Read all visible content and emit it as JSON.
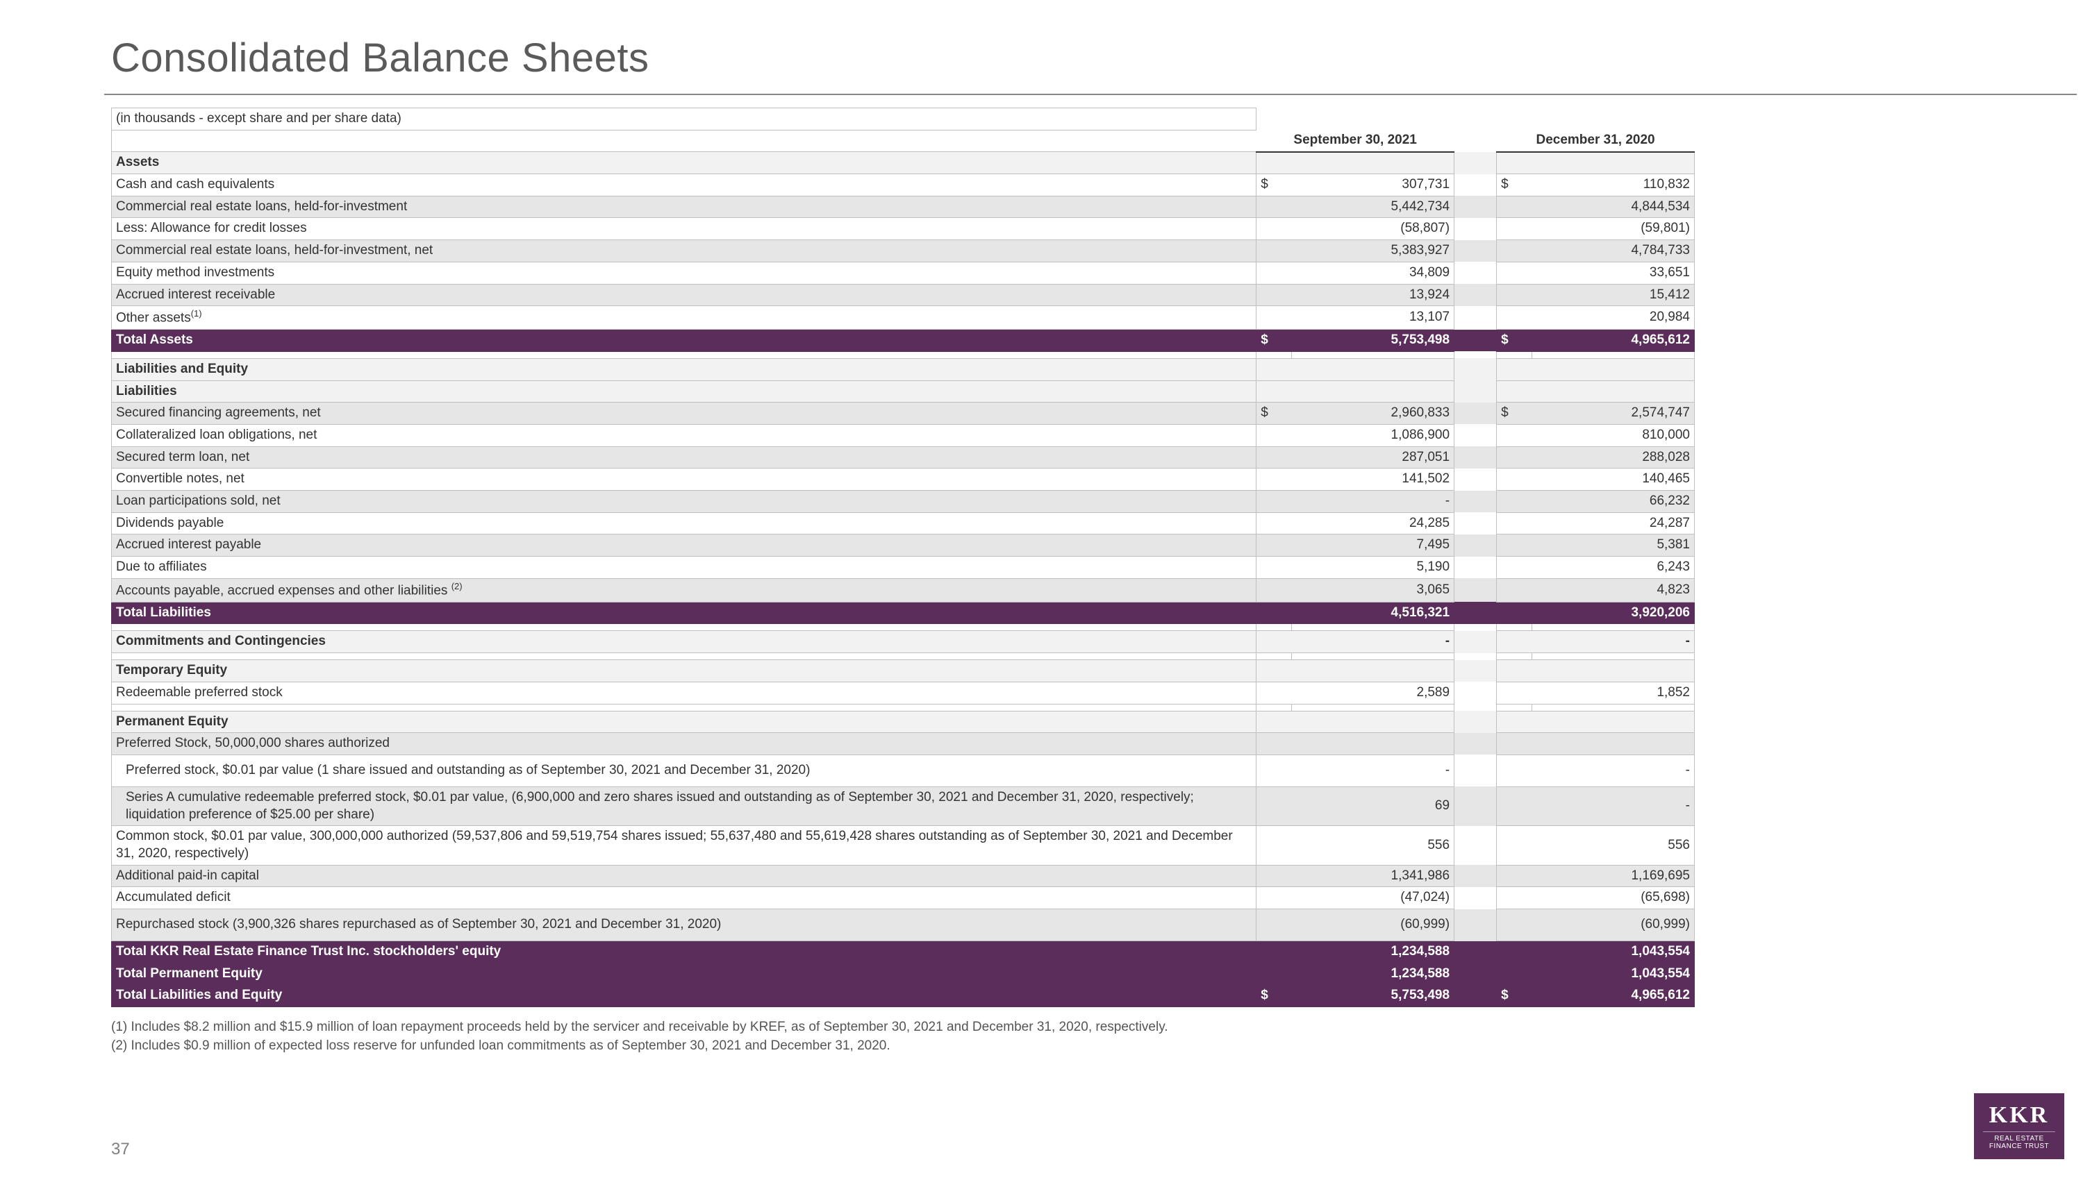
{
  "page": {
    "title": "Consolidated Balance Sheets",
    "subtitle": "(in thousands - except share and per share data)",
    "page_number": "37",
    "footnote1": "(1)   Includes $8.2 million and $15.9 million of loan repayment proceeds held by the servicer and receivable by KREF, as of September 30, 2021 and December 31, 2020, respectively.",
    "footnote2": "(2)   Includes $0.9 million of expected loss reserve for unfunded loan commitments as of September 30, 2021 and December 31, 2020."
  },
  "logo": {
    "brand": "KKR",
    "sub": "REAL ESTATE\nFINANCE TRUST"
  },
  "colors": {
    "total_row_bg": "#5a2d5a",
    "total_row_text": "#ffffff",
    "shade_bg": "#e6e6e6",
    "hdr_bg": "#f2f2f2",
    "border": "#bfbfbf",
    "title_color": "#5a5a5a"
  },
  "columns": {
    "period1": "September 30, 2021",
    "period2": "December 31, 2020"
  },
  "rows": [
    {
      "type": "hdr",
      "label": "Assets"
    },
    {
      "type": "data",
      "label": "Cash and cash equivalents",
      "s1": "$",
      "v1": "307,731",
      "s2": "$",
      "v2": "110,832"
    },
    {
      "type": "shade",
      "label": "Commercial real estate loans, held-for-investment",
      "v1": "5,442,734",
      "v2": "4,844,534"
    },
    {
      "type": "data",
      "label": "Less: Allowance for credit losses",
      "v1": "(58,807)",
      "v2": "(59,801)"
    },
    {
      "type": "shade",
      "label": "Commercial real estate loans, held-for-investment, net",
      "v1": "5,383,927",
      "v2": "4,784,733"
    },
    {
      "type": "data",
      "label": "Equity method investments",
      "v1": "34,809",
      "v2": "33,651"
    },
    {
      "type": "shade",
      "label": "Accrued interest receivable",
      "v1": "13,924",
      "v2": "15,412"
    },
    {
      "type": "data",
      "label": "Other assets",
      "sup": "(1)",
      "v1": "13,107",
      "v2": "20,984"
    },
    {
      "type": "tot",
      "label": "Total Assets",
      "s1": "$",
      "v1": "5,753,498",
      "s2": "$",
      "v2": "4,965,612"
    },
    {
      "type": "spacer"
    },
    {
      "type": "hdr",
      "label": "Liabilities and Equity"
    },
    {
      "type": "hdr",
      "label": "Liabilities"
    },
    {
      "type": "shade",
      "label": "Secured financing agreements, net",
      "s1": "$",
      "v1": "2,960,833",
      "s2": "$",
      "v2": "2,574,747"
    },
    {
      "type": "data",
      "label": "Collateralized loan obligations, net",
      "v1": "1,086,900",
      "v2": "810,000"
    },
    {
      "type": "shade",
      "label": "Secured term loan, net",
      "v1": "287,051",
      "v2": "288,028"
    },
    {
      "type": "data",
      "label": "Convertible notes, net",
      "v1": "141,502",
      "v2": "140,465"
    },
    {
      "type": "shade",
      "label": "Loan participations sold, net",
      "v1": "-",
      "v2": "66,232"
    },
    {
      "type": "data",
      "label": "Dividends payable",
      "v1": "24,285",
      "v2": "24,287"
    },
    {
      "type": "shade",
      "label": "Accrued interest payable",
      "v1": "7,495",
      "v2": "5,381"
    },
    {
      "type": "data",
      "label": "Due to affiliates",
      "v1": "5,190",
      "v2": "6,243"
    },
    {
      "type": "shade",
      "label": "Accounts payable, accrued expenses and other liabilities ",
      "sup": "(2)",
      "v1": "3,065",
      "v2": "4,823"
    },
    {
      "type": "tot",
      "label": "Total Liabilities",
      "v1": "4,516,321",
      "v2": "3,920,206"
    },
    {
      "type": "spacer"
    },
    {
      "type": "hdr",
      "label": "Commitments and Contingencies",
      "v1": "-",
      "v2": "-"
    },
    {
      "type": "spacer"
    },
    {
      "type": "hdr",
      "label": "Temporary Equity"
    },
    {
      "type": "data",
      "label": "Redeemable preferred stock",
      "v1": "2,589",
      "v2": "1,852"
    },
    {
      "type": "spacer"
    },
    {
      "type": "hdr",
      "label": "Permanent Equity"
    },
    {
      "type": "shade",
      "label": "Preferred Stock, 50,000,000 shares authorized"
    },
    {
      "type": "data",
      "indent": true,
      "tall": true,
      "label": "Preferred stock, $0.01 par value (1 share issued and outstanding as of September 30, 2021 and December 31, 2020)",
      "v1": "-",
      "v2": "-"
    },
    {
      "type": "shade",
      "indent": true,
      "tall": true,
      "label": "Series A cumulative redeemable preferred stock, $0.01 par value, (6,900,000 and zero shares issued and outstanding as of September 30, 2021 and December 31, 2020, respectively; liquidation preference of $25.00 per share)",
      "v1": "69",
      "v2": "-"
    },
    {
      "type": "data",
      "tall": true,
      "label": "Common stock, $0.01 par value, 300,000,000 authorized (59,537,806 and 59,519,754 shares issued; 55,637,480 and 55,619,428 shares outstanding as of September 30, 2021 and December 31, 2020, respectively)",
      "v1": "556",
      "v2": "556"
    },
    {
      "type": "shade",
      "label": "Additional paid-in capital",
      "v1": "1,341,986",
      "v2": "1,169,695"
    },
    {
      "type": "data",
      "label": "Accumulated deficit",
      "v1": "(47,024)",
      "v2": "(65,698)"
    },
    {
      "type": "shade",
      "tall": true,
      "label": "Repurchased stock (3,900,326 shares repurchased as of September 30, 2021 and December 31, 2020)",
      "v1": "(60,999)",
      "v2": "(60,999)"
    },
    {
      "type": "tot",
      "label": "Total KKR Real Estate Finance Trust Inc. stockholders' equity",
      "v1": "1,234,588",
      "v2": "1,043,554"
    },
    {
      "type": "tot",
      "label": "Total Permanent Equity",
      "v1": "1,234,588",
      "v2": "1,043,554"
    },
    {
      "type": "tot",
      "label": "Total Liabilities and Equity",
      "s1": "$",
      "v1": "5,753,498",
      "s2": "$",
      "v2": "4,965,612"
    }
  ]
}
